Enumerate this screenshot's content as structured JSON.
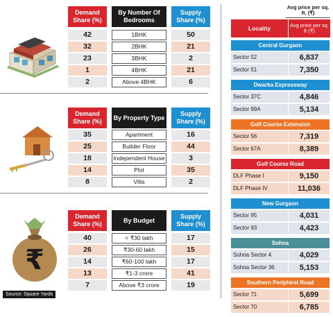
{
  "bedrooms": {
    "headers": {
      "demand": "Demand Share (%)",
      "middle": "By Number Of Bedrooms",
      "supply": "Supply Share (%)"
    },
    "rows": [
      {
        "demand": "42",
        "label": "1BHK",
        "supply": "50"
      },
      {
        "demand": "32",
        "label": "2BHK",
        "supply": "21"
      },
      {
        "demand": "23",
        "label": "3BHK",
        "supply": "2"
      },
      {
        "demand": "1",
        "label": "4BHK",
        "supply": "21"
      },
      {
        "demand": "2",
        "label": "Above 4BHK",
        "supply": "6"
      }
    ]
  },
  "property_type": {
    "headers": {
      "demand": "Demand Share (%)",
      "middle": "By Property Type",
      "supply": "Supply Share (%)"
    },
    "rows": [
      {
        "demand": "35",
        "label": "Apartment",
        "supply": "16"
      },
      {
        "demand": "25",
        "label": "Builder Floor",
        "supply": "44"
      },
      {
        "demand": "18",
        "label": "Independent House",
        "supply": "3"
      },
      {
        "demand": "14",
        "label": "Plot",
        "supply": "35"
      },
      {
        "demand": "8",
        "label": "Villa",
        "supply": "2"
      }
    ]
  },
  "budget": {
    "headers": {
      "demand": "Demand Share (%)",
      "middle": "By Budget",
      "supply": "Supply Share (%)"
    },
    "rows": [
      {
        "demand": "40",
        "label": "< ₹30 lakh",
        "supply": "17"
      },
      {
        "demand": "26",
        "label": "₹30-60 lakh",
        "supply": "15"
      },
      {
        "demand": "14",
        "label": "₹60-100 lakh",
        "supply": "17"
      },
      {
        "demand": "13",
        "label": "₹1-3 crore",
        "supply": "41"
      },
      {
        "demand": "7",
        "label": "Above ₹3 crore",
        "supply": "19"
      }
    ]
  },
  "source": "Source: Square Yards",
  "price_table": {
    "top_label": "Avg price per sq. ft. (₹)",
    "header_locality": "Locality",
    "header_price": "Avg price per sq. ft (₹)",
    "groups": [
      {
        "title": "Central Gurgaon",
        "rows": [
          {
            "name": "Sector 52",
            "price": "6,837"
          },
          {
            "name": "Sector 51",
            "price": "7,350"
          }
        ]
      },
      {
        "title": "Dwarka Expressway",
        "rows": [
          {
            "name": "Sector 37C",
            "price": "4,846"
          },
          {
            "name": "Sector 99A",
            "price": "5,134"
          }
        ]
      },
      {
        "title": "Golf Course Extension",
        "rows": [
          {
            "name": "Sector 56",
            "price": "7,319"
          },
          {
            "name": "Sector 67A",
            "price": "8,389"
          }
        ]
      },
      {
        "title": "Golf Course Road",
        "rows": [
          {
            "name": "DLF Phase I",
            "price": "9,150"
          },
          {
            "name": "DLF Phase IV",
            "price": "11,036"
          }
        ]
      },
      {
        "title": "New Gurgaon",
        "rows": [
          {
            "name": "Sector 95",
            "price": "4,031"
          },
          {
            "name": "Sector 93",
            "price": "4,423"
          }
        ]
      },
      {
        "title": "Sohna",
        "rows": [
          {
            "name": "Sohna Sector 4",
            "price": "4,029"
          },
          {
            "name": "Sohna Sector 36",
            "price": "5,153"
          }
        ]
      },
      {
        "title": "Southern Periphirel Road",
        "rows": [
          {
            "name": "Sector 71",
            "price": "5,699"
          },
          {
            "name": "Sector 70",
            "price": "6,785"
          }
        ]
      }
    ],
    "group_colors": [
      "blue",
      "blue",
      "orange",
      "red",
      "blue",
      "teal",
      "orange"
    ]
  },
  "colors": {
    "red": "#d9262e",
    "blue": "#1e8fd0",
    "orange": "#ec7424",
    "dark": "#1b1b1b",
    "peach": "#f6d8c8",
    "grey": "#e8e8ea"
  },
  "icons": [
    "house-model-icon",
    "house-key-icon",
    "rupee-money-bag-icon"
  ]
}
